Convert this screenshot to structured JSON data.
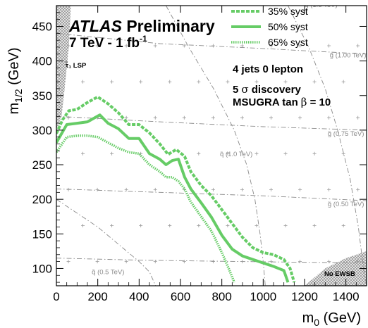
{
  "chart_data": {
    "type": "line",
    "xlabel": "m",
    "xlabel_sub": "0",
    "xlabel_unit": " (GeV)",
    "ylabel": "m",
    "ylabel_sub": "1/2",
    "ylabel_unit": " (GeV)",
    "xlim": [
      0,
      1500
    ],
    "ylim": [
      75,
      480
    ],
    "x_ticks": [
      0,
      200,
      400,
      600,
      800,
      1000,
      1200,
      1400
    ],
    "y_ticks": [
      100,
      150,
      200,
      250,
      300,
      350,
      400,
      450
    ],
    "grid": false,
    "legend_position": "top-right",
    "colors": {
      "series": "#66cc66",
      "excluded_region": "#9a9a9a",
      "contour": "#8a8a8a"
    },
    "title_italic": "ATLAS",
    "title_rest": " Preliminary",
    "subtitle": "7 TeV - 1 fb",
    "subtitle_sup": "-1",
    "annotations": {
      "jets": "4 jets 0 lepton",
      "discovery_a": "5",
      "discovery_sigma": "σ",
      "discovery_b": " discovery",
      "msugra_a": "MSUGRA tan",
      "msugra_beta": "β",
      "msugra_b": " = 10",
      "stau_lsp": "τ̃₁ LSP",
      "no_ewsb": "No EWSB"
    },
    "series": [
      {
        "name": "35% syst",
        "style": "dashed",
        "points": [
          [
            0,
            295
          ],
          [
            30,
            315
          ],
          [
            60,
            328
          ],
          [
            100,
            330
          ],
          [
            150,
            340
          ],
          [
            200,
            348
          ],
          [
            250,
            338
          ],
          [
            300,
            325
          ],
          [
            350,
            308
          ],
          [
            400,
            308
          ],
          [
            450,
            296
          ],
          [
            500,
            280
          ],
          [
            540,
            265
          ],
          [
            580,
            272
          ],
          [
            620,
            262
          ],
          [
            650,
            240
          ],
          [
            700,
            220
          ],
          [
            750,
            205
          ],
          [
            800,
            185
          ],
          [
            850,
            165
          ],
          [
            900,
            145
          ],
          [
            950,
            130
          ],
          [
            1000,
            123
          ],
          [
            1050,
            120
          ],
          [
            1100,
            113
          ],
          [
            1130,
            100
          ],
          [
            1150,
            80
          ]
        ]
      },
      {
        "name": "50% syst",
        "style": "solid",
        "points": [
          [
            0,
            282
          ],
          [
            50,
            308
          ],
          [
            100,
            310
          ],
          [
            150,
            312
          ],
          [
            210,
            322
          ],
          [
            250,
            310
          ],
          [
            300,
            302
          ],
          [
            350,
            288
          ],
          [
            400,
            288
          ],
          [
            450,
            266
          ],
          [
            500,
            258
          ],
          [
            530,
            250
          ],
          [
            560,
            256
          ],
          [
            590,
            258
          ],
          [
            620,
            232
          ],
          [
            650,
            215
          ],
          [
            700,
            195
          ],
          [
            750,
            174
          ],
          [
            800,
            148
          ],
          [
            850,
            128
          ],
          [
            900,
            118
          ],
          [
            950,
            113
          ],
          [
            1000,
            108
          ],
          [
            1050,
            103
          ],
          [
            1100,
            97
          ],
          [
            1120,
            80
          ]
        ]
      },
      {
        "name": "65% syst",
        "style": "dotted",
        "points": [
          [
            0,
            268
          ],
          [
            50,
            290
          ],
          [
            100,
            292
          ],
          [
            150,
            292
          ],
          [
            200,
            290
          ],
          [
            250,
            282
          ],
          [
            300,
            274
          ],
          [
            350,
            268
          ],
          [
            400,
            266
          ],
          [
            450,
            250
          ],
          [
            500,
            240
          ],
          [
            530,
            232
          ],
          [
            560,
            232
          ],
          [
            590,
            226
          ],
          [
            620,
            215
          ],
          [
            650,
            196
          ],
          [
            700,
            175
          ],
          [
            750,
            154
          ],
          [
            800,
            123
          ],
          [
            840,
            95
          ],
          [
            860,
            80
          ]
        ]
      }
    ],
    "mass_contours": [
      {
        "label": "q̃ (0.5 TeV)",
        "label_pos": [
          250,
          92
        ]
      },
      {
        "label": "q̃ (1.0 TeV)",
        "label_pos": [
          870,
          262
        ]
      },
      {
        "label": "q̃ (1.5 TeV)",
        "label_pos": [
          1280,
          478
        ]
      },
      {
        "label": "g̃ (0.50 TeV)",
        "label_pos": [
          1400,
          190
        ]
      },
      {
        "label": "g̃ (0.75 TeV)",
        "label_pos": [
          1400,
          292
        ]
      },
      {
        "label": "g̃ (1.00 TeV)",
        "label_pos": [
          1410,
          405
        ]
      }
    ]
  }
}
